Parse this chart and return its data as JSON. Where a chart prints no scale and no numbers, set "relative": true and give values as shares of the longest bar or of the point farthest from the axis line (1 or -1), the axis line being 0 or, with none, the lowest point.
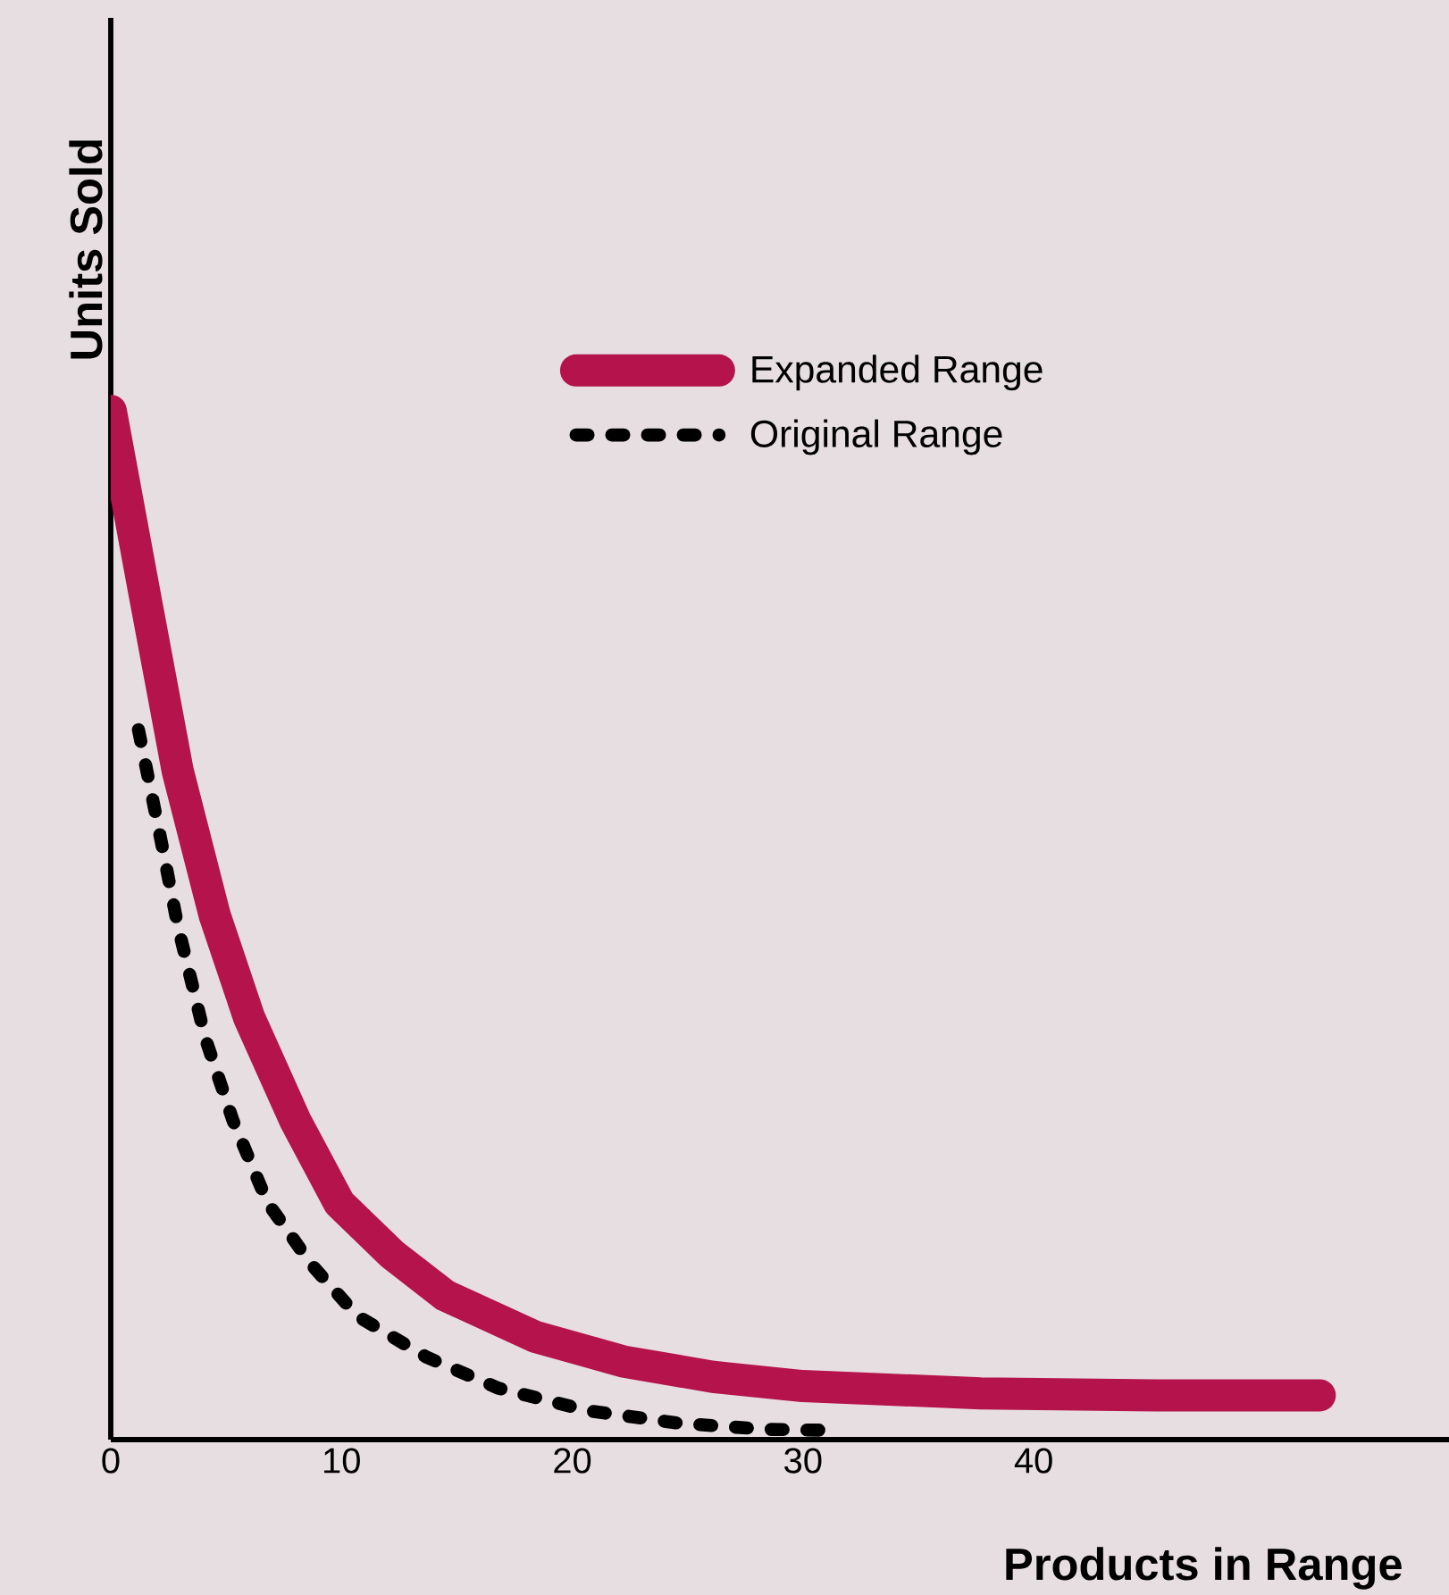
{
  "chart_data": {
    "type": "line",
    "xlabel": "Products in Range",
    "ylabel": "Units Sold",
    "relative": true,
    "xlim": [
      0,
      58
    ],
    "xticks": [
      0,
      10,
      20,
      30,
      40
    ],
    "tick_labels": "x",
    "grid": false,
    "legend": "top right",
    "marker": "none",
    "series": [
      {
        "name": "Expanded Range",
        "color": "#b5134b",
        "line_style": "solid",
        "x": [
          0,
          1.4,
          2.9,
          4.5,
          6.0,
          8.0,
          9.9,
          12.2,
          14.5,
          18.4,
          22.2,
          26.1,
          30,
          37.7,
          45.4,
          52.4
        ],
        "values": [
          1.0,
          0.83,
          0.65,
          0.51,
          0.41,
          0.31,
          0.23,
          0.18,
          0.14,
          0.1,
          0.076,
          0.061,
          0.052,
          0.045,
          0.043,
          0.043
        ]
      },
      {
        "name": "Original Range",
        "color": "#000000",
        "line_style": "dotted",
        "x": [
          1.2,
          2.2,
          2.9,
          4.1,
          5.3,
          6.8,
          8.7,
          10.7,
          13.7,
          16.8,
          20.7,
          24.6,
          28.4,
          31.1
        ],
        "values": [
          0.69,
          0.58,
          0.5,
          0.39,
          0.31,
          0.23,
          0.17,
          0.12,
          0.08,
          0.05,
          0.028,
          0.016,
          0.01,
          0.009
        ]
      }
    ]
  }
}
